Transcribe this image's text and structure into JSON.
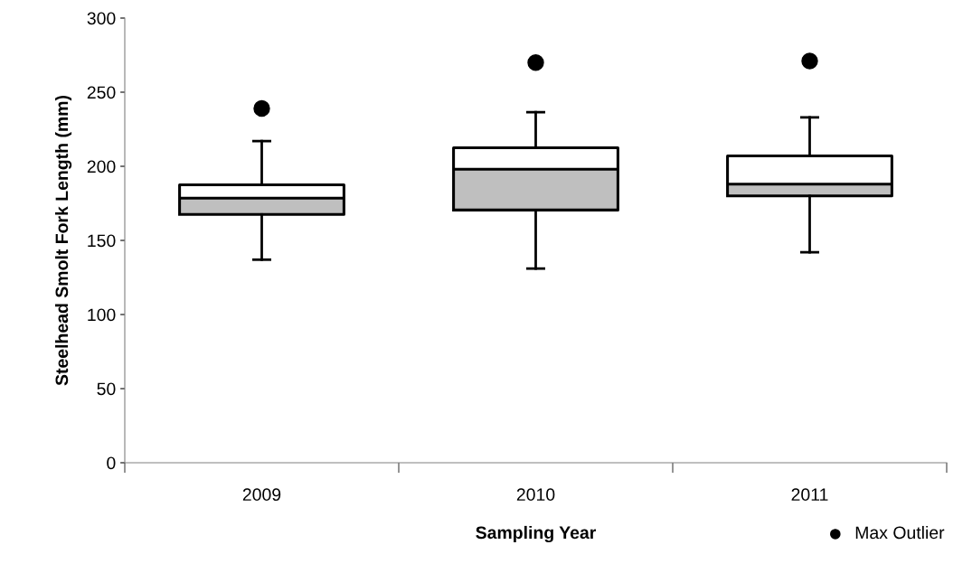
{
  "chart_data": {
    "type": "box",
    "xlabel": "Sampling Year",
    "ylabel": "Steelhead Smolt Fork Length (mm)",
    "categories": [
      "2009",
      "2010",
      "2011"
    ],
    "color": "#bfbfbf",
    "boxes": [
      {
        "low": 137,
        "q1": 167.5,
        "median": 178.5,
        "q3": 187.5,
        "high": 217
      },
      {
        "low": 131,
        "q1": 170.5,
        "median": 198,
        "q3": 212.5,
        "high": 236.5
      },
      {
        "low": 142,
        "q1": 180,
        "median": 188,
        "q3": 207,
        "high": 233
      }
    ],
    "series": [
      {
        "name": "Max Outlier",
        "type": "scatter",
        "color": "#000000",
        "values": [
          239,
          270,
          271
        ]
      }
    ],
    "ylim": [
      0,
      300
    ],
    "yticks": [
      0,
      50,
      100,
      150,
      200,
      250,
      300
    ],
    "grid": false,
    "legend": "bottom right",
    "marker": "circle"
  }
}
